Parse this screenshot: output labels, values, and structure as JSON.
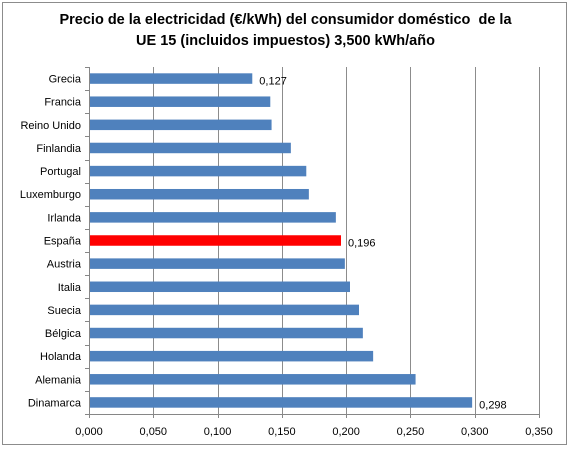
{
  "chart_data": {
    "type": "bar",
    "orientation": "horizontal",
    "title_lines": [
      "Precio de la electricidad (€/kWh) del consumidor doméstico  de la",
      "UE 15 (incluidos impuestos) 3,500 kWh/año"
    ],
    "categories": [
      "Grecia",
      "Francia",
      "Reino Unido",
      "Finlandia",
      "Portugal",
      "Luxemburgo",
      "Irlanda",
      "España",
      "Austria",
      "Italia",
      "Suecia",
      "Bélgica",
      "Holanda",
      "Alemania",
      "Dinamarca"
    ],
    "values": [
      0.127,
      0.141,
      0.142,
      0.157,
      0.169,
      0.171,
      0.192,
      0.196,
      0.199,
      0.203,
      0.21,
      0.213,
      0.221,
      0.254,
      0.298
    ],
    "highlight_category": "España",
    "data_labels": [
      {
        "category": "Grecia",
        "text": "0,127"
      },
      {
        "category": "España",
        "text": "0,196"
      },
      {
        "category": "Dinamarca",
        "text": "0,298"
      }
    ],
    "xlim": [
      0,
      0.35
    ],
    "x_ticks": [
      0,
      0.05,
      0.1,
      0.15,
      0.2,
      0.25,
      0.3,
      0.35
    ],
    "x_tick_labels": [
      "0,000",
      "0,050",
      "0,100",
      "0,150",
      "0,200",
      "0,250",
      "0,300",
      "0,350"
    ],
    "grid": "vertical",
    "legend": "none",
    "colors": {
      "bar": "#4f81bd",
      "highlight": "#ff0000",
      "grid": "#8c8c8c",
      "axis": "#868686"
    }
  }
}
